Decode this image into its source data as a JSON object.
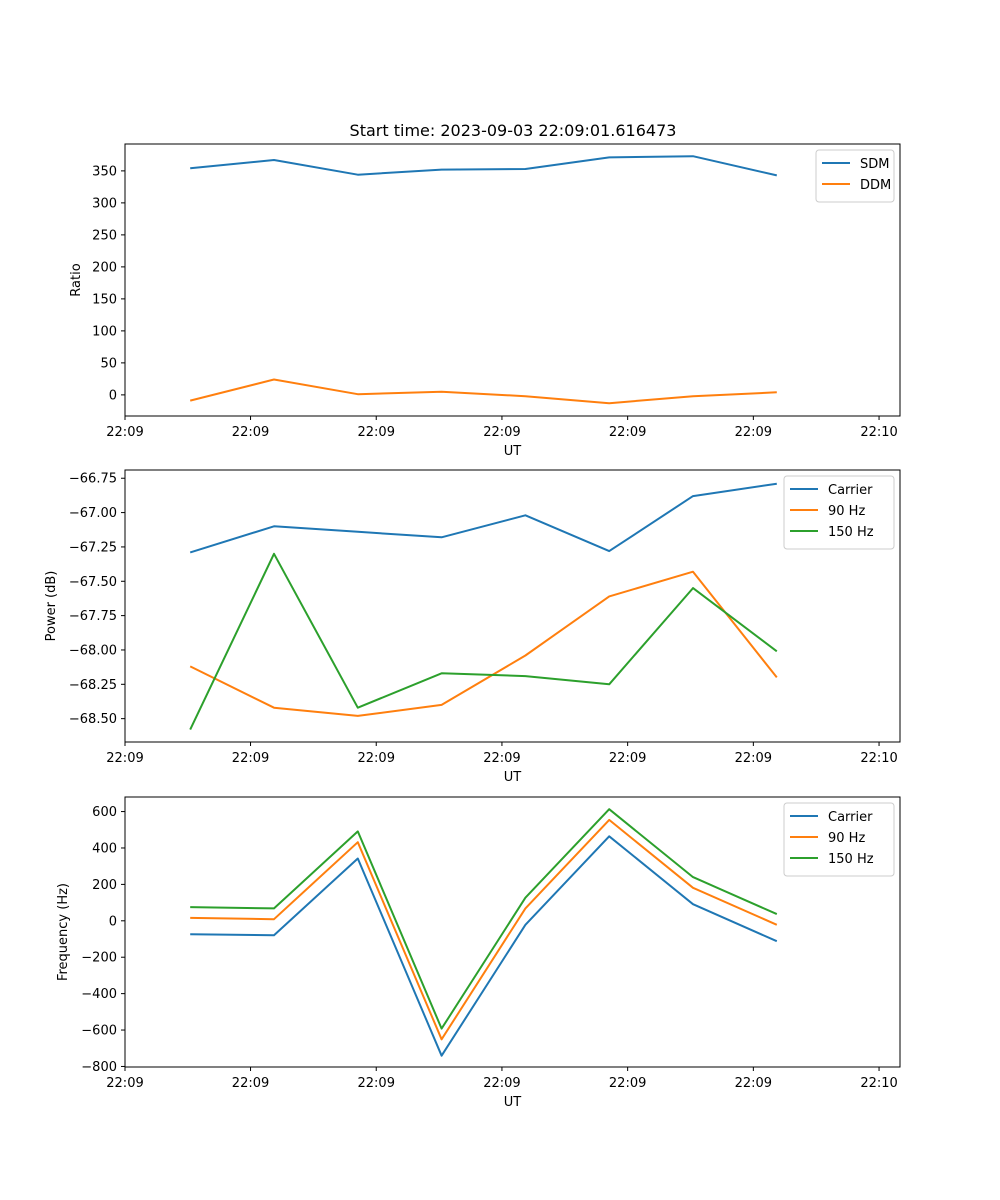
{
  "title": "Start time: 2023-09-03 22:09:01.616473",
  "colors": {
    "blue": "#1f77b4",
    "orange": "#ff7f0e",
    "green": "#2ca02c"
  },
  "chart_data": [
    {
      "type": "line",
      "title": "Start time: 2023-09-03 22:09:01.616473",
      "xlabel": "UT",
      "ylabel": "Ratio",
      "x": [
        1,
        2,
        3,
        4,
        5,
        6,
        7,
        8
      ],
      "xlim": [
        0.222,
        9.47
      ],
      "xticks": [
        0.222,
        1.72,
        3.22,
        4.72,
        6.22,
        7.72,
        9.22
      ],
      "xtick_labels": [
        "22:09",
        "22:09",
        "22:09",
        "22:09",
        "22:09",
        "22:09",
        "22:10"
      ],
      "ylim": [
        -33,
        392
      ],
      "yticks": [
        0,
        50,
        100,
        150,
        200,
        250,
        300,
        350
      ],
      "ytick_labels": [
        "0",
        "50",
        "100",
        "150",
        "200",
        "250",
        "300",
        "350"
      ],
      "legend_position": "top-right",
      "series": [
        {
          "name": "SDM",
          "color": "#1f77b4",
          "values": [
            354,
            367,
            344,
            352,
            353,
            371,
            373,
            343
          ]
        },
        {
          "name": "DDM",
          "color": "#ff7f0e",
          "values": [
            -9,
            24,
            1,
            5,
            -2,
            -13,
            -2,
            4
          ]
        }
      ]
    },
    {
      "type": "line",
      "title": "",
      "xlabel": "UT",
      "ylabel": "Power (dB)",
      "x": [
        1,
        2,
        3,
        4,
        5,
        6,
        7,
        8
      ],
      "xlim": [
        0.222,
        9.47
      ],
      "xticks": [
        0.222,
        1.72,
        3.22,
        4.72,
        6.22,
        7.72,
        9.22
      ],
      "xtick_labels": [
        "22:09",
        "22:09",
        "22:09",
        "22:09",
        "22:09",
        "22:09",
        "22:10"
      ],
      "ylim": [
        -68.67,
        -66.69
      ],
      "yticks": [
        -68.5,
        -68.25,
        -68.0,
        -67.75,
        -67.5,
        -67.25,
        -67.0,
        -66.75
      ],
      "ytick_labels": [
        "−68.50",
        "−68.25",
        "−68.00",
        "−67.75",
        "−67.50",
        "−67.25",
        "−67.00",
        "−66.75"
      ],
      "legend_position": "top-right",
      "series": [
        {
          "name": "Carrier",
          "color": "#1f77b4",
          "values": [
            -67.29,
            -67.1,
            -67.14,
            -67.18,
            -67.02,
            -67.28,
            -66.88,
            -66.79
          ]
        },
        {
          "name": "90 Hz",
          "color": "#ff7f0e",
          "values": [
            -68.12,
            -68.42,
            -68.48,
            -68.4,
            -68.04,
            -67.61,
            -67.43,
            -68.2
          ]
        },
        {
          "name": "150 Hz",
          "color": "#2ca02c",
          "values": [
            -68.58,
            -67.3,
            -68.42,
            -68.17,
            -68.19,
            -68.25,
            -67.55,
            -68.01
          ]
        }
      ]
    },
    {
      "type": "line",
      "title": "",
      "xlabel": "UT",
      "ylabel": "Frequency (Hz)",
      "x": [
        1,
        2,
        3,
        4,
        5,
        6,
        7,
        8
      ],
      "xlim": [
        0.222,
        9.47
      ],
      "xticks": [
        0.222,
        1.72,
        3.22,
        4.72,
        6.22,
        7.72,
        9.22
      ],
      "xtick_labels": [
        "22:09",
        "22:09",
        "22:09",
        "22:09",
        "22:09",
        "22:09",
        "22:10"
      ],
      "ylim": [
        -803,
        680
      ],
      "yticks": [
        -800,
        -600,
        -400,
        -200,
        0,
        200,
        400,
        600
      ],
      "ytick_labels": [
        "−800",
        "−600",
        "−400",
        "−200",
        "0",
        "200",
        "400",
        "600"
      ],
      "legend_position": "top-right",
      "series": [
        {
          "name": "Carrier",
          "color": "#1f77b4",
          "values": [
            -74,
            -79,
            342,
            -741,
            -22,
            464,
            91,
            -112
          ]
        },
        {
          "name": "90 Hz",
          "color": "#ff7f0e",
          "values": [
            16,
            9,
            432,
            -651,
            68,
            554,
            181,
            -22
          ]
        },
        {
          "name": "150 Hz",
          "color": "#2ca02c",
          "values": [
            75,
            68,
            491,
            -592,
            127,
            613,
            240,
            37
          ]
        }
      ]
    }
  ]
}
